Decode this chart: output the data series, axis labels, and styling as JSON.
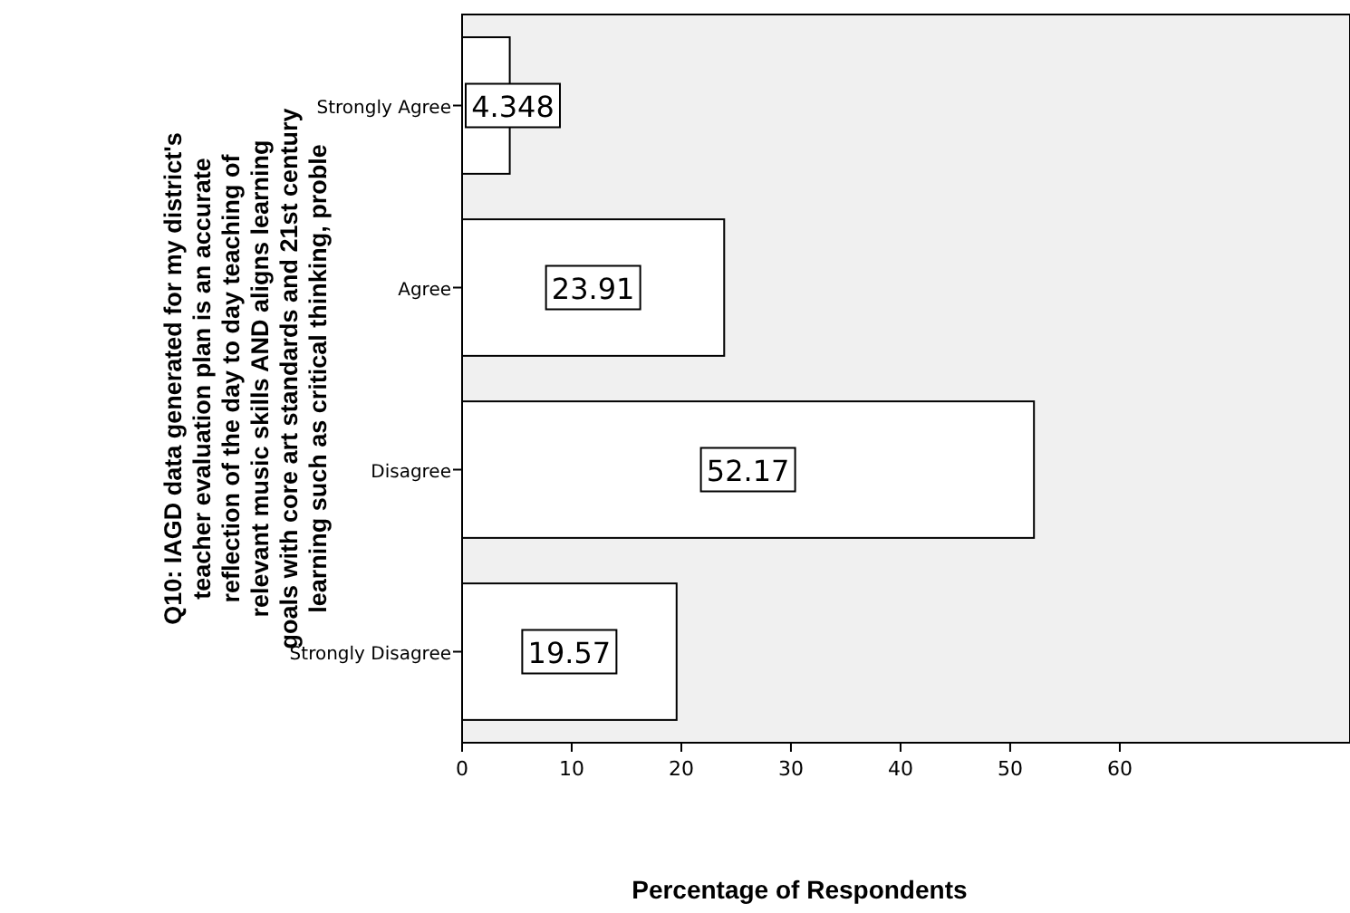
{
  "chart_data": {
    "type": "bar",
    "orientation": "horizontal",
    "categories": [
      "Strongly Agree",
      "Agree",
      "Disagree",
      "Strongly Disagree"
    ],
    "values": [
      4.348,
      23.91,
      52.17,
      19.57
    ],
    "color": "#ffffff",
    "data_labels": true,
    "xlim": [
      0,
      81
    ],
    "xticks": [
      0,
      10,
      20,
      30,
      40,
      50,
      60
    ],
    "xlabel": "Percentage of Respondents",
    "ylabel": "Q10:  IAGD data generated for my district's\nteacher evaluation plan is an accurate\nreflection of the day to day teaching of\nrelevant music skills AND aligns learning\ngoals with core art standards and 21st century\nlearning such as critical thinking, proble",
    "grid": false
  }
}
